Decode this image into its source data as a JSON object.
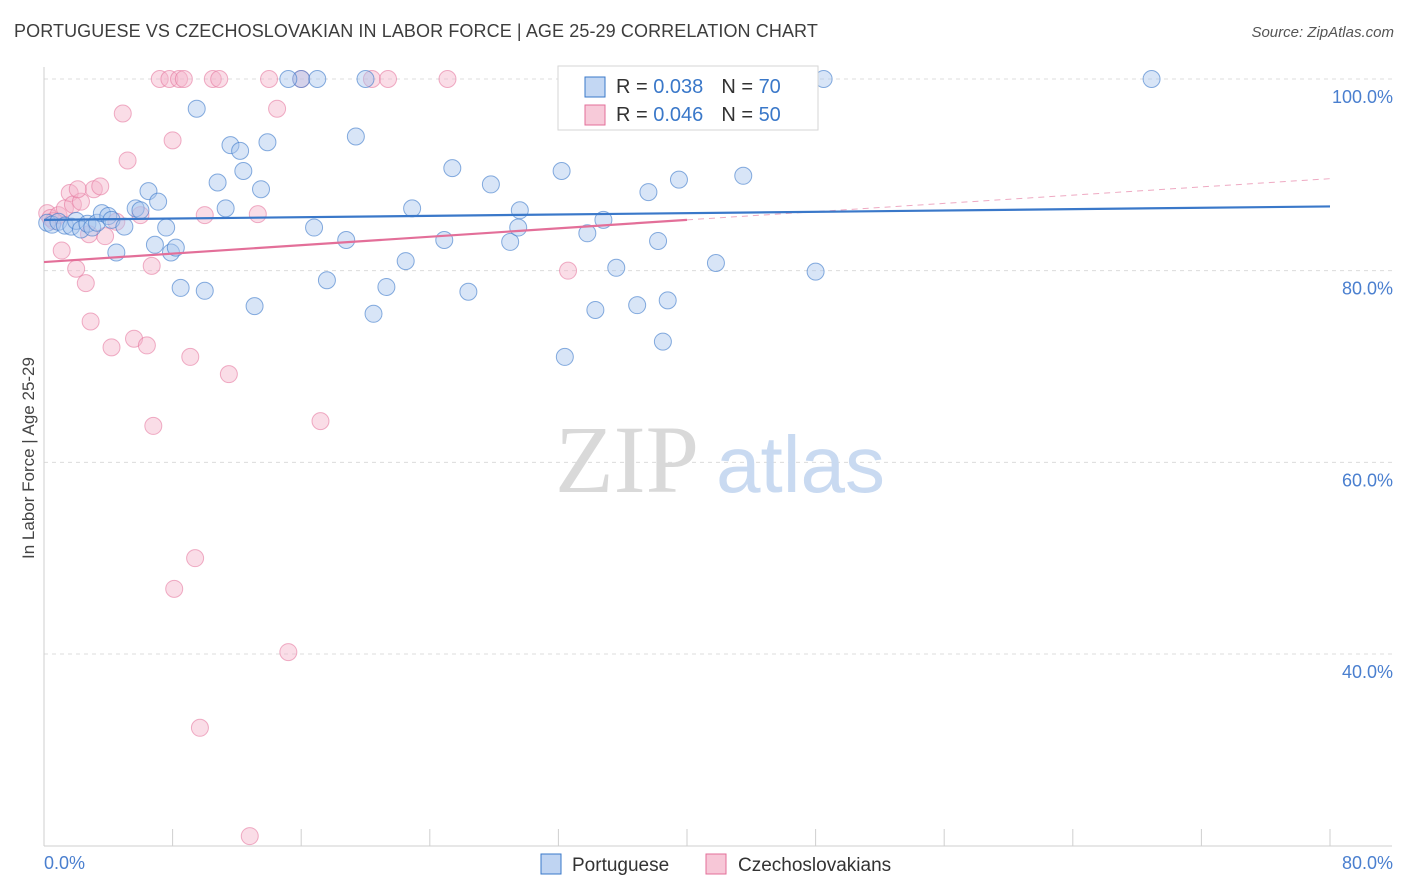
{
  "title": "PORTUGUESE VS CZECHOSLOVAKIAN IN LABOR FORCE | AGE 25-29 CORRELATION CHART",
  "source": "Source: ZipAtlas.com",
  "watermark": {
    "zip": "ZIP",
    "atlas": "atlas"
  },
  "colors": {
    "blue": "#3a78c9",
    "blue_fill": "#a9c6ee",
    "pink": "#e36f99",
    "pink_fill": "#f4b4c9",
    "axis_text": "#4a7fcf",
    "grid": "#dcdcdc"
  },
  "legend_top": [
    {
      "r_label": "R = ",
      "r_value": "0.038",
      "n_label": "N = ",
      "n_value": "70",
      "color": "#3a78c9",
      "fill": "#a9c6ee"
    },
    {
      "r_label": "R = ",
      "r_value": "0.046",
      "n_label": "N = ",
      "n_value": "50",
      "color": "#e36f99",
      "fill": "#f4b4c9"
    }
  ],
  "legend_bottom": [
    "Portuguese",
    "Czechoslovakians"
  ],
  "chart_data": {
    "type": "scatter",
    "title": "PORTUGUESE VS CZECHOSLOVAKIAN IN LABOR FORCE | AGE 25-29 CORRELATION CHART",
    "xlabel": "",
    "ylabel": "In Labor Force | Age 25-29",
    "xlim": [
      0,
      80
    ],
    "ylim": [
      20,
      102
    ],
    "x_tick_labels": [
      "0.0%",
      "80.0%"
    ],
    "y_tick_labels": [
      "100.0%",
      "80.0%",
      "60.0%",
      "40.0%"
    ],
    "y_ticks": [
      100,
      80,
      60,
      40
    ],
    "grid": true,
    "series": [
      {
        "name": "Portuguese",
        "color": "#3a78c9",
        "r": 0.038,
        "n": 70,
        "trend": [
          [
            0,
            85.3
          ],
          [
            80,
            86.7
          ]
        ],
        "points": [
          [
            0.2,
            85.0
          ],
          [
            0.5,
            84.8
          ],
          [
            0.9,
            85.1
          ],
          [
            1.3,
            84.7
          ],
          [
            1.7,
            84.6
          ],
          [
            2.0,
            85.2
          ],
          [
            2.3,
            84.3
          ],
          [
            2.7,
            84.9
          ],
          [
            3.0,
            84.5
          ],
          [
            3.3,
            85.0
          ],
          [
            3.6,
            86.0
          ],
          [
            4.0,
            85.7
          ],
          [
            4.2,
            85.3
          ],
          [
            4.5,
            81.9
          ],
          [
            5.0,
            84.6
          ],
          [
            5.7,
            86.5
          ],
          [
            6.0,
            86.3
          ],
          [
            6.5,
            88.3
          ],
          [
            6.9,
            82.7
          ],
          [
            7.1,
            87.2
          ],
          [
            7.6,
            84.5
          ],
          [
            7.9,
            81.9
          ],
          [
            8.2,
            82.4
          ],
          [
            8.5,
            78.2
          ],
          [
            9.5,
            96.9
          ],
          [
            10.0,
            77.9
          ],
          [
            10.8,
            89.2
          ],
          [
            11.3,
            86.5
          ],
          [
            11.6,
            93.1
          ],
          [
            12.2,
            92.5
          ],
          [
            12.4,
            90.4
          ],
          [
            13.1,
            76.3
          ],
          [
            13.5,
            88.5
          ],
          [
            13.9,
            93.4
          ],
          [
            16.0,
            100.0
          ],
          [
            16.8,
            84.5
          ],
          [
            17.6,
            79.0
          ],
          [
            18.8,
            83.2
          ],
          [
            19.4,
            94.0
          ],
          [
            20.5,
            75.5
          ],
          [
            21.3,
            78.3
          ],
          [
            22.5,
            81.0
          ],
          [
            22.9,
            86.5
          ],
          [
            24.9,
            83.2
          ],
          [
            25.4,
            90.7
          ],
          [
            26.4,
            77.8
          ],
          [
            27.8,
            89.0
          ],
          [
            29.0,
            83.0
          ],
          [
            29.5,
            84.5
          ],
          [
            29.6,
            86.3
          ],
          [
            32.2,
            90.4
          ],
          [
            32.4,
            71.0
          ],
          [
            33.8,
            83.9
          ],
          [
            34.3,
            75.9
          ],
          [
            34.8,
            85.3
          ],
          [
            35.6,
            80.3
          ],
          [
            36.9,
            76.4
          ],
          [
            37.6,
            88.2
          ],
          [
            38.2,
            83.1
          ],
          [
            38.5,
            72.6
          ],
          [
            38.8,
            76.9
          ],
          [
            39.5,
            89.5
          ],
          [
            41.8,
            80.8
          ],
          [
            43.5,
            89.9
          ],
          [
            48.0,
            79.9
          ],
          [
            48.5,
            100.0
          ],
          [
            68.9,
            100.0
          ],
          [
            15.2,
            100.0
          ],
          [
            17.0,
            100.0
          ],
          [
            20.0,
            100.0
          ]
        ]
      },
      {
        "name": "Czechoslovakians",
        "color": "#e36f99",
        "r": 0.046,
        "n": 50,
        "trend": [
          [
            0,
            80.9
          ],
          [
            40,
            85.3
          ]
        ],
        "trend_dashed": [
          [
            40,
            85.3
          ],
          [
            80,
            89.6
          ]
        ],
        "points": [
          [
            0.2,
            86.0
          ],
          [
            0.4,
            85.5
          ],
          [
            0.6,
            85.2
          ],
          [
            0.9,
            85.8
          ],
          [
            1.1,
            82.1
          ],
          [
            1.3,
            86.5
          ],
          [
            1.6,
            88.1
          ],
          [
            1.8,
            86.9
          ],
          [
            2.0,
            80.2
          ],
          [
            2.3,
            87.2
          ],
          [
            2.6,
            78.7
          ],
          [
            2.9,
            74.7
          ],
          [
            3.1,
            88.5
          ],
          [
            3.5,
            88.8
          ],
          [
            3.8,
            83.6
          ],
          [
            4.2,
            72.0
          ],
          [
            4.5,
            85.1
          ],
          [
            4.9,
            96.4
          ],
          [
            5.2,
            91.5
          ],
          [
            5.6,
            72.9
          ],
          [
            6.0,
            85.8
          ],
          [
            6.4,
            72.2
          ],
          [
            6.7,
            80.5
          ],
          [
            6.8,
            63.8
          ],
          [
            7.2,
            100.0
          ],
          [
            7.8,
            100.0
          ],
          [
            8.0,
            93.6
          ],
          [
            8.4,
            100.0
          ],
          [
            8.7,
            100.0
          ],
          [
            9.1,
            71.0
          ],
          [
            9.4,
            50.0
          ],
          [
            9.7,
            32.3
          ],
          [
            10.0,
            85.8
          ],
          [
            10.5,
            100.0
          ],
          [
            10.9,
            100.0
          ],
          [
            11.5,
            69.2
          ],
          [
            12.8,
            21.0
          ],
          [
            13.3,
            85.9
          ],
          [
            14.0,
            100.0
          ],
          [
            14.5,
            96.9
          ],
          [
            15.2,
            40.2
          ],
          [
            16.0,
            100.0
          ],
          [
            17.2,
            64.3
          ],
          [
            20.4,
            100.0
          ],
          [
            21.4,
            100.0
          ],
          [
            25.1,
            100.0
          ],
          [
            32.6,
            80.0
          ],
          [
            8.1,
            46.8
          ],
          [
            2.1,
            88.5
          ],
          [
            2.8,
            83.8
          ]
        ]
      }
    ]
  }
}
